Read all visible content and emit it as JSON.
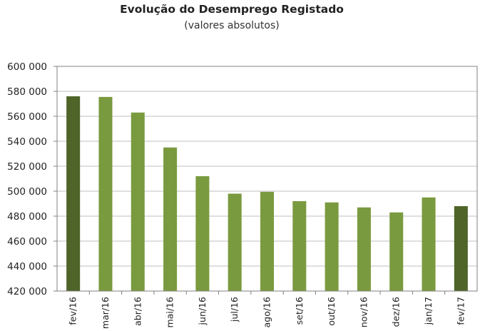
{
  "chart_data": {
    "type": "bar",
    "title": "Evolução do Desemprego Registado",
    "subtitle": "(valores absolutos)",
    "xlabel": "",
    "ylabel": "",
    "ylim": [
      420000,
      600000
    ],
    "yticks": [
      420000,
      440000,
      460000,
      480000,
      500000,
      520000,
      540000,
      560000,
      580000,
      600000
    ],
    "ytick_labels": [
      "420 000",
      "440 000",
      "460 000",
      "480 000",
      "500 000",
      "520 000",
      "540 000",
      "560 000",
      "580 000",
      "600 000"
    ],
    "grid": true,
    "categories": [
      "fev/16",
      "mar/16",
      "abr/16",
      "mai/16",
      "jun/16",
      "jul/16",
      "ago/16",
      "set/16",
      "out/16",
      "nov/16",
      "dez/16",
      "jan/17",
      "fev/17"
    ],
    "values": [
      576000,
      575500,
      563000,
      535000,
      512000,
      498000,
      499500,
      492000,
      491000,
      487000,
      483000,
      495000,
      488000
    ],
    "highlighted": [
      "fev/16",
      "fev/17"
    ],
    "colors": {
      "bar": "#7a9a3f",
      "highlight": "#4e6429",
      "grid": "#bfbfbf",
      "axis": "#808080"
    }
  }
}
